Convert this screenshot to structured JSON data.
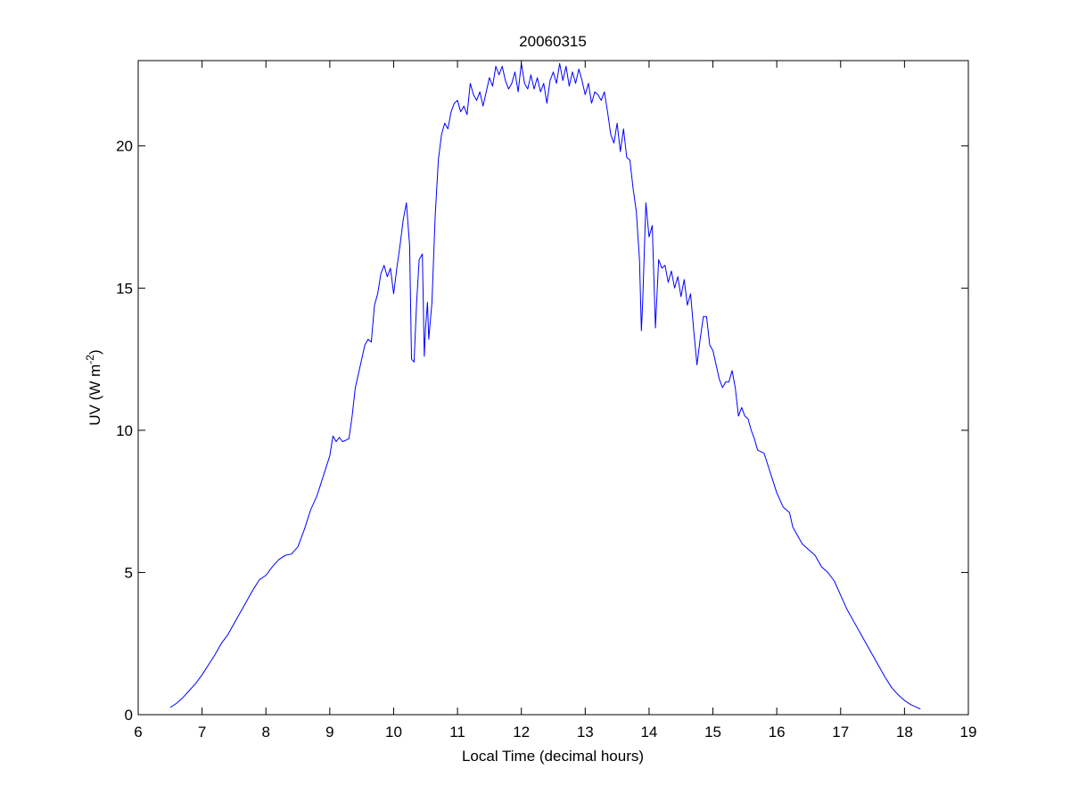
{
  "chart_data": {
    "type": "line",
    "title": "20060315",
    "xlabel": "Local Time (decimal hours)",
    "ylabel_main": "UV (W m",
    "ylabel_sup": "-2",
    "ylabel_close": ")",
    "xlim": [
      6,
      19
    ],
    "ylim": [
      0,
      23
    ],
    "xticks": [
      6,
      7,
      8,
      9,
      10,
      11,
      12,
      13,
      14,
      15,
      16,
      17,
      18,
      19
    ],
    "yticks": [
      0,
      5,
      10,
      15,
      20
    ],
    "grid": false,
    "line_color": "#0000ff",
    "series": [
      {
        "points": [
          [
            6.5,
            0.25
          ],
          [
            6.6,
            0.4
          ],
          [
            6.7,
            0.6
          ],
          [
            6.8,
            0.85
          ],
          [
            6.9,
            1.1
          ],
          [
            7.0,
            1.4
          ],
          [
            7.1,
            1.75
          ],
          [
            7.2,
            2.1
          ],
          [
            7.3,
            2.5
          ],
          [
            7.4,
            2.8
          ],
          [
            7.5,
            3.2
          ],
          [
            7.6,
            3.6
          ],
          [
            7.7,
            4.0
          ],
          [
            7.8,
            4.4
          ],
          [
            7.9,
            4.75
          ],
          [
            8.0,
            4.9
          ],
          [
            8.1,
            5.2
          ],
          [
            8.2,
            5.45
          ],
          [
            8.3,
            5.6
          ],
          [
            8.4,
            5.65
          ],
          [
            8.5,
            5.9
          ],
          [
            8.6,
            6.5
          ],
          [
            8.7,
            7.2
          ],
          [
            8.8,
            7.7
          ],
          [
            8.9,
            8.4
          ],
          [
            9.0,
            9.1
          ],
          [
            9.05,
            9.8
          ],
          [
            9.1,
            9.6
          ],
          [
            9.15,
            9.75
          ],
          [
            9.2,
            9.6
          ],
          [
            9.3,
            9.7
          ],
          [
            9.35,
            10.5
          ],
          [
            9.4,
            11.5
          ],
          [
            9.5,
            12.5
          ],
          [
            9.55,
            13.0
          ],
          [
            9.6,
            13.2
          ],
          [
            9.65,
            13.1
          ],
          [
            9.7,
            14.4
          ],
          [
            9.75,
            14.8
          ],
          [
            9.8,
            15.5
          ],
          [
            9.85,
            15.8
          ],
          [
            9.9,
            15.4
          ],
          [
            9.95,
            15.7
          ],
          [
            10.0,
            14.8
          ],
          [
            10.05,
            15.7
          ],
          [
            10.1,
            16.5
          ],
          [
            10.15,
            17.4
          ],
          [
            10.2,
            18.0
          ],
          [
            10.25,
            16.5
          ],
          [
            10.28,
            12.5
          ],
          [
            10.32,
            12.4
          ],
          [
            10.36,
            14.5
          ],
          [
            10.4,
            16.0
          ],
          [
            10.45,
            16.2
          ],
          [
            10.48,
            12.6
          ],
          [
            10.5,
            13.6
          ],
          [
            10.53,
            14.5
          ],
          [
            10.55,
            13.2
          ],
          [
            10.6,
            14.5
          ],
          [
            10.65,
            17.5
          ],
          [
            10.7,
            19.5
          ],
          [
            10.75,
            20.4
          ],
          [
            10.8,
            20.8
          ],
          [
            10.85,
            20.6
          ],
          [
            10.9,
            21.2
          ],
          [
            10.95,
            21.5
          ],
          [
            11.0,
            21.6
          ],
          [
            11.05,
            21.2
          ],
          [
            11.1,
            21.4
          ],
          [
            11.15,
            21.1
          ],
          [
            11.2,
            22.2
          ],
          [
            11.25,
            21.8
          ],
          [
            11.3,
            21.6
          ],
          [
            11.35,
            21.9
          ],
          [
            11.4,
            21.4
          ],
          [
            11.45,
            21.9
          ],
          [
            11.5,
            22.4
          ],
          [
            11.55,
            22.1
          ],
          [
            11.6,
            22.8
          ],
          [
            11.65,
            22.5
          ],
          [
            11.7,
            22.8
          ],
          [
            11.75,
            22.3
          ],
          [
            11.8,
            22.0
          ],
          [
            11.85,
            22.2
          ],
          [
            11.9,
            22.6
          ],
          [
            11.95,
            21.9
          ],
          [
            12.0,
            22.9
          ],
          [
            12.05,
            22.2
          ],
          [
            12.1,
            22.0
          ],
          [
            12.15,
            22.5
          ],
          [
            12.2,
            22.0
          ],
          [
            12.25,
            22.4
          ],
          [
            12.3,
            21.9
          ],
          [
            12.35,
            22.2
          ],
          [
            12.4,
            21.5
          ],
          [
            12.45,
            22.3
          ],
          [
            12.5,
            22.6
          ],
          [
            12.55,
            22.2
          ],
          [
            12.6,
            22.9
          ],
          [
            12.65,
            22.3
          ],
          [
            12.7,
            22.8
          ],
          [
            12.75,
            22.1
          ],
          [
            12.8,
            22.6
          ],
          [
            12.85,
            22.2
          ],
          [
            12.9,
            22.7
          ],
          [
            12.95,
            22.3
          ],
          [
            13.0,
            21.8
          ],
          [
            13.05,
            22.2
          ],
          [
            13.1,
            21.5
          ],
          [
            13.15,
            21.9
          ],
          [
            13.2,
            21.8
          ],
          [
            13.25,
            21.6
          ],
          [
            13.3,
            21.9
          ],
          [
            13.35,
            21.2
          ],
          [
            13.4,
            20.4
          ],
          [
            13.45,
            20.1
          ],
          [
            13.5,
            20.8
          ],
          [
            13.55,
            19.8
          ],
          [
            13.6,
            20.6
          ],
          [
            13.65,
            19.6
          ],
          [
            13.7,
            19.5
          ],
          [
            13.75,
            18.5
          ],
          [
            13.8,
            17.7
          ],
          [
            13.85,
            16.0
          ],
          [
            13.88,
            13.5
          ],
          [
            13.9,
            14.5
          ],
          [
            13.95,
            18.0
          ],
          [
            14.0,
            16.8
          ],
          [
            14.05,
            17.2
          ],
          [
            14.1,
            13.6
          ],
          [
            14.15,
            16.0
          ],
          [
            14.2,
            15.7
          ],
          [
            14.25,
            15.8
          ],
          [
            14.3,
            15.2
          ],
          [
            14.35,
            15.6
          ],
          [
            14.4,
            15.0
          ],
          [
            14.45,
            15.4
          ],
          [
            14.5,
            14.7
          ],
          [
            14.55,
            15.3
          ],
          [
            14.6,
            14.4
          ],
          [
            14.65,
            14.8
          ],
          [
            14.7,
            13.5
          ],
          [
            14.75,
            12.3
          ],
          [
            14.8,
            13.2
          ],
          [
            14.85,
            14.0
          ],
          [
            14.9,
            14.0
          ],
          [
            14.95,
            13.0
          ],
          [
            15.0,
            12.8
          ],
          [
            15.05,
            12.3
          ],
          [
            15.1,
            11.8
          ],
          [
            15.15,
            11.5
          ],
          [
            15.2,
            11.7
          ],
          [
            15.25,
            11.7
          ],
          [
            15.3,
            12.1
          ],
          [
            15.35,
            11.5
          ],
          [
            15.4,
            10.5
          ],
          [
            15.45,
            10.8
          ],
          [
            15.5,
            10.5
          ],
          [
            15.55,
            10.4
          ],
          [
            15.6,
            10.0
          ],
          [
            15.65,
            9.7
          ],
          [
            15.7,
            9.3
          ],
          [
            15.8,
            9.2
          ],
          [
            15.9,
            8.5
          ],
          [
            16.0,
            7.8
          ],
          [
            16.1,
            7.3
          ],
          [
            16.2,
            7.1
          ],
          [
            16.25,
            6.6
          ],
          [
            16.3,
            6.4
          ],
          [
            16.4,
            6.0
          ],
          [
            16.5,
            5.8
          ],
          [
            16.6,
            5.6
          ],
          [
            16.7,
            5.2
          ],
          [
            16.8,
            5.0
          ],
          [
            16.9,
            4.7
          ],
          [
            17.0,
            4.2
          ],
          [
            17.1,
            3.7
          ],
          [
            17.2,
            3.3
          ],
          [
            17.3,
            2.9
          ],
          [
            17.4,
            2.5
          ],
          [
            17.5,
            2.1
          ],
          [
            17.6,
            1.7
          ],
          [
            17.7,
            1.3
          ],
          [
            17.8,
            0.95
          ],
          [
            17.9,
            0.7
          ],
          [
            18.0,
            0.5
          ],
          [
            18.1,
            0.35
          ],
          [
            18.2,
            0.25
          ],
          [
            18.25,
            0.2
          ]
        ]
      }
    ]
  }
}
